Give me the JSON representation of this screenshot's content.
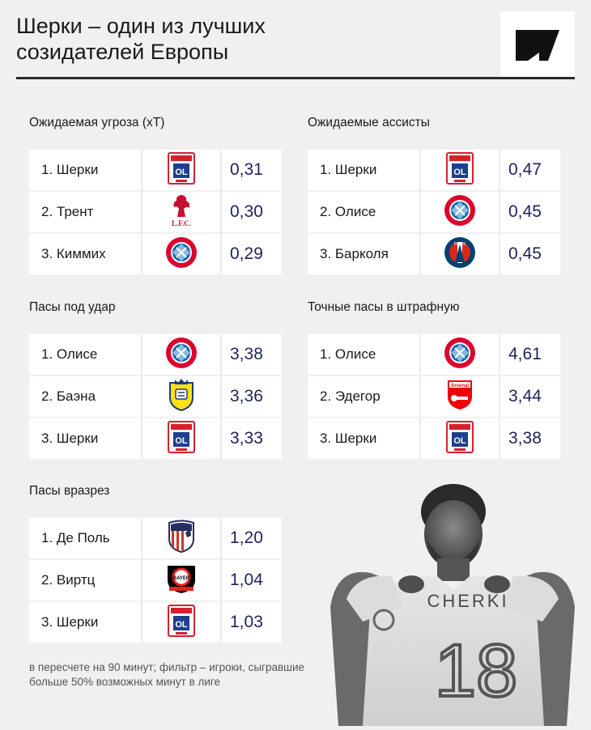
{
  "header": {
    "title": "Шерки – один из лучших\nсозидателей Европы"
  },
  "sections": {
    "xt": {
      "title": "Ожидаемая угроза (xT)",
      "rows": [
        {
          "name": "1. Шерки",
          "club": "lyon-logo",
          "value": "0,31"
        },
        {
          "name": "2. Трент",
          "club": "liverpool-logo",
          "value": "0,30"
        },
        {
          "name": "3. Киммих",
          "club": "bayern-logo",
          "value": "0,29"
        }
      ]
    },
    "xa": {
      "title": "Ожидаемые ассисты",
      "rows": [
        {
          "name": "1. Шерки",
          "club": "lyon-logo",
          "value": "0,47"
        },
        {
          "name": "2. Олисе",
          "club": "bayern-logo",
          "value": "0,45"
        },
        {
          "name": "3. Барколя",
          "club": "psg-logo",
          "value": "0,45"
        }
      ]
    },
    "shot_passes": {
      "title": "Пасы под удар",
      "rows": [
        {
          "name": "1. Олисе",
          "club": "bayern-logo",
          "value": "3,38"
        },
        {
          "name": "2. Баэна",
          "club": "villarreal-logo",
          "value": "3,36"
        },
        {
          "name": "3. Шерки",
          "club": "lyon-logo",
          "value": "3,33"
        }
      ]
    },
    "box_passes": {
      "title": "Точные пасы в штрафную",
      "rows": [
        {
          "name": "1. Олисе",
          "club": "bayern-logo",
          "value": "4,61"
        },
        {
          "name": "2. Эдегор",
          "club": "arsenal-logo",
          "value": "3,44"
        },
        {
          "name": "3. Шерки",
          "club": "lyon-logo",
          "value": "3,38"
        }
      ]
    },
    "through_balls": {
      "title": "Пасы вразрез",
      "rows": [
        {
          "name": "1. Де Поль",
          "club": "atletico-logo",
          "value": "1,20"
        },
        {
          "name": "2. Виртц",
          "club": "leverkusen-logo",
          "value": "1,04"
        },
        {
          "name": "3. Шерки",
          "club": "lyon-logo",
          "value": "1,03"
        }
      ]
    }
  },
  "footnote": "в пересчете на 90 минут; фильтр – игроки, сыгравшие больше 50% возможных минут в лиге",
  "player_photo": {
    "shirt_name": "CHERKI",
    "shirt_number": "18"
  },
  "colors": {
    "background": "#f0f0f0",
    "value_text": "#1e2359",
    "lyon_red": "#d6202f",
    "lyon_blue": "#1d3f8f",
    "liverpool_red": "#c8102e",
    "bayern_red": "#dc052d",
    "bayern_blue": "#0066b2",
    "psg_navy": "#004170",
    "villarreal_yellow": "#ffe114",
    "arsenal_red": "#ef0107",
    "atletico_red": "#cb3524",
    "leverkusen_red": "#e32221"
  }
}
